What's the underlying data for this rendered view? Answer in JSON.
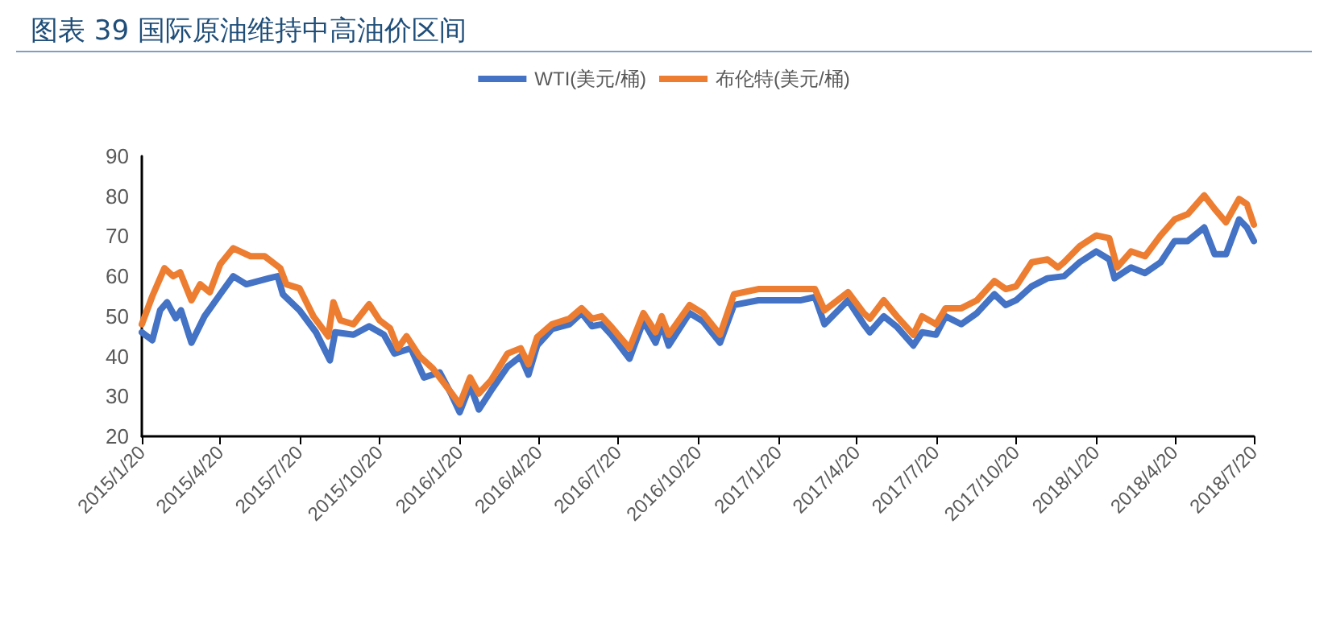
{
  "chart_data": {
    "type": "line",
    "title": "图表 39 国际原油维持中高油价区间",
    "legend": "top",
    "grid": false,
    "marker": "none",
    "line_style": "solid",
    "xlim": [
      "2015-01-20",
      "2018-07-20"
    ],
    "xticks": [
      {
        "value": "2015-01-20",
        "label": "2015/1/20"
      },
      {
        "value": "2015-04-20",
        "label": "2015/4/20"
      },
      {
        "value": "2015-07-20",
        "label": "2015/7/20"
      },
      {
        "value": "2015-10-20",
        "label": "2015/10/20"
      },
      {
        "value": "2016-01-20",
        "label": "2016/1/20"
      },
      {
        "value": "2016-04-20",
        "label": "2016/4/20"
      },
      {
        "value": "2016-07-20",
        "label": "2016/7/20"
      },
      {
        "value": "2016-10-20",
        "label": "2016/10/20"
      },
      {
        "value": "2017-01-20",
        "label": "2017/1/20"
      },
      {
        "value": "2017-04-20",
        "label": "2017/4/20"
      },
      {
        "value": "2017-07-20",
        "label": "2017/7/20"
      },
      {
        "value": "2017-10-20",
        "label": "2017/10/20"
      },
      {
        "value": "2018-01-20",
        "label": "2018/1/20"
      },
      {
        "value": "2018-04-20",
        "label": "2018/4/20"
      },
      {
        "value": "2018-07-20",
        "label": "2018/7/20"
      }
    ],
    "ylim": [
      20,
      90
    ],
    "yticks": [
      20,
      30,
      40,
      50,
      60,
      70,
      80,
      90
    ],
    "series": [
      {
        "name": "WTI(美元/桶)",
        "color": "#4472c4",
        "x": [
          "2015-01-20",
          "2015-02-01",
          "2015-02-10",
          "2015-02-18",
          "2015-02-28",
          "2015-03-06",
          "2015-03-18",
          "2015-04-02",
          "2015-04-20",
          "2015-05-05",
          "2015-05-20",
          "2015-06-15",
          "2015-06-25",
          "2015-07-01",
          "2015-07-20",
          "2015-08-08",
          "2015-08-24",
          "2015-08-30",
          "2015-09-20",
          "2015-10-08",
          "2015-10-25",
          "2015-11-06",
          "2015-11-25",
          "2015-12-10",
          "2015-12-28",
          "2016-01-10",
          "2016-01-20",
          "2016-02-01",
          "2016-02-11",
          "2016-02-25",
          "2016-03-15",
          "2016-03-30",
          "2016-04-08",
          "2016-04-18",
          "2016-05-05",
          "2016-05-25",
          "2016-06-08",
          "2016-06-20",
          "2016-07-01",
          "2016-07-12",
          "2016-08-02",
          "2016-08-18",
          "2016-09-01",
          "2016-09-08",
          "2016-09-16",
          "2016-10-10",
          "2016-10-25",
          "2016-11-14",
          "2016-11-30",
          "2016-12-28",
          "2017-01-20",
          "2017-02-15",
          "2017-03-03",
          "2017-03-14",
          "2017-04-10",
          "2017-04-28",
          "2017-05-05",
          "2017-05-21",
          "2017-06-05",
          "2017-06-24",
          "2017-07-04",
          "2017-07-20",
          "2017-07-31",
          "2017-08-18",
          "2017-09-05",
          "2017-09-25",
          "2017-10-08",
          "2017-10-20",
          "2017-11-07",
          "2017-11-25",
          "2017-12-14",
          "2018-01-01",
          "2018-01-20",
          "2018-02-04",
          "2018-02-10",
          "2018-03-01",
          "2018-03-17",
          "2018-04-04",
          "2018-04-20",
          "2018-05-05",
          "2018-05-24",
          "2018-06-05",
          "2018-06-18",
          "2018-07-03",
          "2018-07-12",
          "2018-07-20"
        ],
        "values": [
          46,
          44,
          51.5,
          53.5,
          49.5,
          51.5,
          43.4,
          50,
          55.5,
          60,
          58,
          59.5,
          60,
          55.5,
          51.5,
          46,
          39,
          46,
          45.4,
          47.5,
          45.4,
          40.7,
          42,
          34.7,
          36,
          30.7,
          26,
          32.7,
          26.7,
          31.4,
          37.4,
          40,
          35.4,
          42.7,
          46.8,
          48,
          50.8,
          47.5,
          48,
          45.4,
          39.4,
          48.8,
          43.4,
          48,
          42.7,
          50.8,
          48.8,
          43.4,
          52.8,
          54,
          54,
          54,
          54.8,
          48,
          54,
          48,
          46,
          50,
          47.4,
          42.7,
          46,
          45.4,
          50,
          48,
          50.8,
          55.5,
          52.8,
          54,
          57.5,
          59.5,
          60,
          63.5,
          66.2,
          64.2,
          59.5,
          62.2,
          60.8,
          63.5,
          68.8,
          68.8,
          72.2,
          65.5,
          65.5,
          74.2,
          72.2,
          68.8
        ]
      },
      {
        "name": "布伦特(美元/桶)",
        "color": "#ed7d31",
        "x": [
          "2015-01-20",
          "2015-02-01",
          "2015-02-15",
          "2015-02-25",
          "2015-03-05",
          "2015-03-18",
          "2015-03-28",
          "2015-04-08",
          "2015-04-20",
          "2015-05-05",
          "2015-05-25",
          "2015-06-10",
          "2015-06-28",
          "2015-07-05",
          "2015-07-20",
          "2015-08-05",
          "2015-08-22",
          "2015-08-28",
          "2015-09-05",
          "2015-09-20",
          "2015-10-08",
          "2015-10-20",
          "2015-11-01",
          "2015-11-10",
          "2015-11-20",
          "2015-12-05",
          "2015-12-20",
          "2016-01-10",
          "2016-01-20",
          "2016-02-01",
          "2016-02-11",
          "2016-02-25",
          "2016-03-15",
          "2016-03-30",
          "2016-04-08",
          "2016-04-18",
          "2016-05-05",
          "2016-05-25",
          "2016-06-08",
          "2016-06-20",
          "2016-07-01",
          "2016-07-12",
          "2016-08-02",
          "2016-08-18",
          "2016-09-01",
          "2016-09-08",
          "2016-09-16",
          "2016-10-10",
          "2016-10-25",
          "2016-11-14",
          "2016-11-30",
          "2016-12-28",
          "2017-01-20",
          "2017-02-15",
          "2017-03-03",
          "2017-03-14",
          "2017-04-10",
          "2017-04-28",
          "2017-05-05",
          "2017-05-21",
          "2017-06-05",
          "2017-06-24",
          "2017-07-04",
          "2017-07-20",
          "2017-07-31",
          "2017-08-18",
          "2017-09-05",
          "2017-09-25",
          "2017-10-08",
          "2017-10-20",
          "2017-11-07",
          "2017-11-25",
          "2017-12-07",
          "2017-12-14",
          "2018-01-01",
          "2018-01-20",
          "2018-02-04",
          "2018-02-13",
          "2018-03-01",
          "2018-03-17",
          "2018-04-04",
          "2018-04-20",
          "2018-05-05",
          "2018-05-24",
          "2018-06-05",
          "2018-06-18",
          "2018-07-03",
          "2018-07-12",
          "2018-07-20"
        ],
        "values": [
          48,
          55,
          62,
          60,
          61,
          54,
          58,
          56,
          63,
          67,
          65,
          65,
          62,
          58,
          57,
          50,
          45,
          53.5,
          49,
          48,
          53,
          49,
          47,
          42,
          45,
          40,
          37,
          31,
          28,
          34.7,
          30.7,
          34,
          40.7,
          42,
          38,
          44.8,
          48,
          49.4,
          52,
          49.4,
          50,
          47.4,
          42,
          50.8,
          46,
          50,
          45.4,
          52.8,
          50.8,
          45.4,
          55.5,
          56.8,
          56.8,
          56.8,
          56.8,
          51.5,
          56,
          50.8,
          49.4,
          54,
          50,
          45.4,
          50,
          48,
          52,
          52,
          54,
          58.8,
          56.8,
          57.5,
          63.5,
          64.2,
          62.2,
          63.5,
          67.5,
          70.2,
          69.5,
          62.2,
          66.2,
          65,
          70.2,
          74.2,
          75.5,
          80.2,
          76.8,
          73.5,
          79.3,
          78,
          72.9
        ]
      }
    ]
  }
}
